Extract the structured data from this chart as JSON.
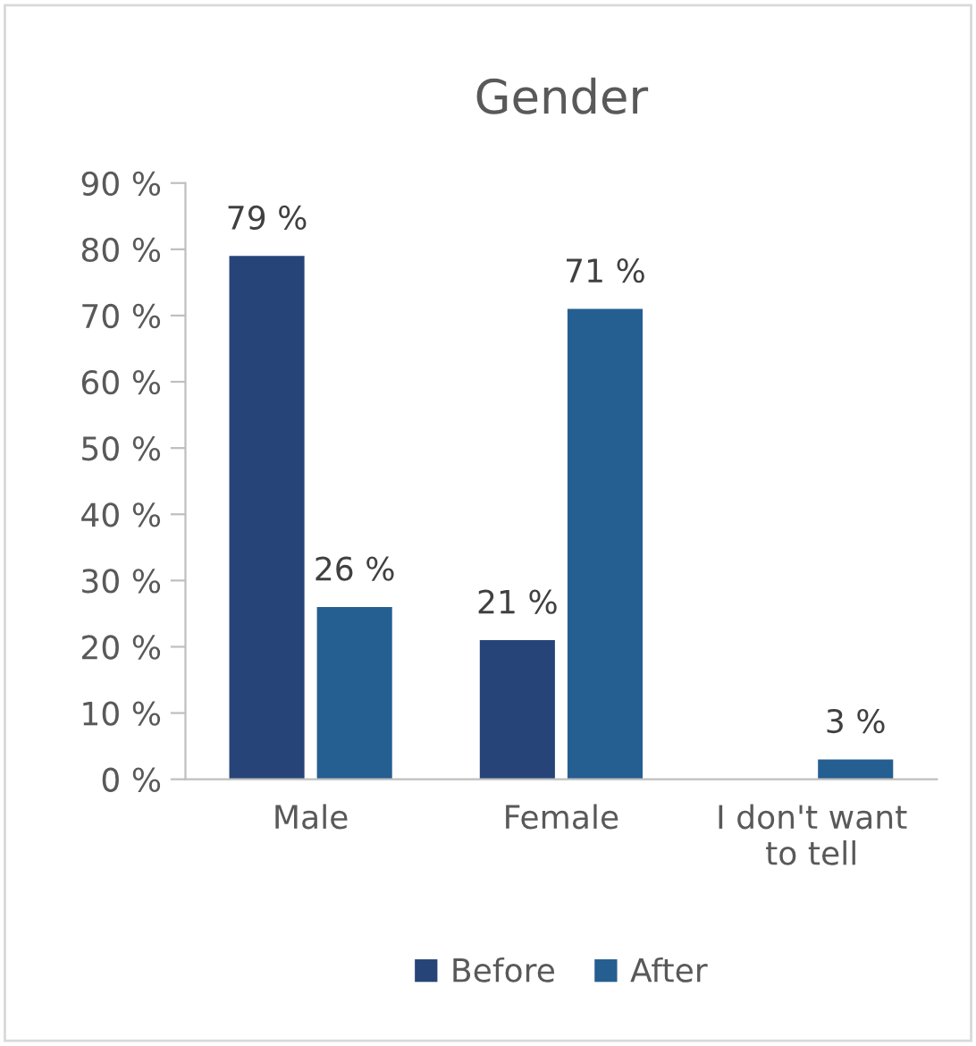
{
  "chart_data": {
    "type": "bar",
    "title": "Gender",
    "categories": [
      "Male",
      "Female",
      "I don't want\nto tell"
    ],
    "series": [
      {
        "name": "Before",
        "color": "#264478",
        "values": [
          79,
          21,
          null
        ],
        "value_labels": [
          "79 %",
          "21 %",
          null
        ]
      },
      {
        "name": "After",
        "color": "#255e91",
        "values": [
          26,
          71,
          3
        ],
        "value_labels": [
          "26 %",
          "71 %",
          "3 %"
        ]
      }
    ],
    "ylim": [
      0,
      90
    ],
    "yticks": [
      {
        "value": 0,
        "label": "0 %"
      },
      {
        "value": 10,
        "label": "10 %"
      },
      {
        "value": 20,
        "label": "20 %"
      },
      {
        "value": 30,
        "label": "30 %"
      },
      {
        "value": 40,
        "label": "40 %"
      },
      {
        "value": 50,
        "label": "50 %"
      },
      {
        "value": 60,
        "label": "60 %"
      },
      {
        "value": 70,
        "label": "70 %"
      },
      {
        "value": 80,
        "label": "80 %"
      },
      {
        "value": 90,
        "label": "90 %"
      }
    ],
    "grid": false,
    "legend": "bottom"
  }
}
